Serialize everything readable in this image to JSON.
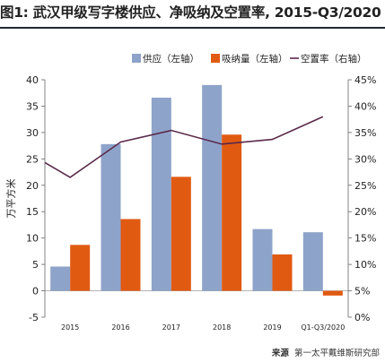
{
  "chart_data": {
    "type": "bar",
    "title": "图1: 武汉甲级写字楼供应、净吸纳及空置率, 2015-Q3/2020",
    "ylabel": "万平方米",
    "categories": [
      "2015",
      "2016",
      "2017",
      "2018",
      "2019",
      "Q1-Q3/2020"
    ],
    "ylim": [
      -5,
      40
    ],
    "y_ticks": [
      "-5",
      "0",
      "5",
      "10",
      "15",
      "20",
      "25",
      "30",
      "35",
      "40"
    ],
    "y2lim": [
      0,
      45
    ],
    "y2_ticks": [
      "0%",
      "5%",
      "10%",
      "15%",
      "20%",
      "25%",
      "30%",
      "35%",
      "40%",
      "45%"
    ],
    "series": [
      {
        "name": "供应（左轴）",
        "type": "bar",
        "axis": "left",
        "color": "#8ea3c9",
        "values": [
          4.6,
          27.8,
          36.6,
          39.0,
          11.7,
          11.1
        ]
      },
      {
        "name": "吸纳量（左轴）",
        "type": "bar",
        "axis": "left",
        "color": "#e05a12",
        "values": [
          8.7,
          13.6,
          21.6,
          29.6,
          6.9,
          -0.9
        ]
      },
      {
        "name": "空置率（右轴）",
        "type": "line",
        "axis": "right",
        "color": "#5a2a4a",
        "values": [
          26.5,
          33.2,
          35.4,
          32.8,
          33.7,
          38.0
        ],
        "start_value": 29.3
      }
    ],
    "legend_position": "top-right",
    "grid": false
  },
  "source": {
    "label": "来源",
    "text": "第一太平戴维斯研究部"
  }
}
